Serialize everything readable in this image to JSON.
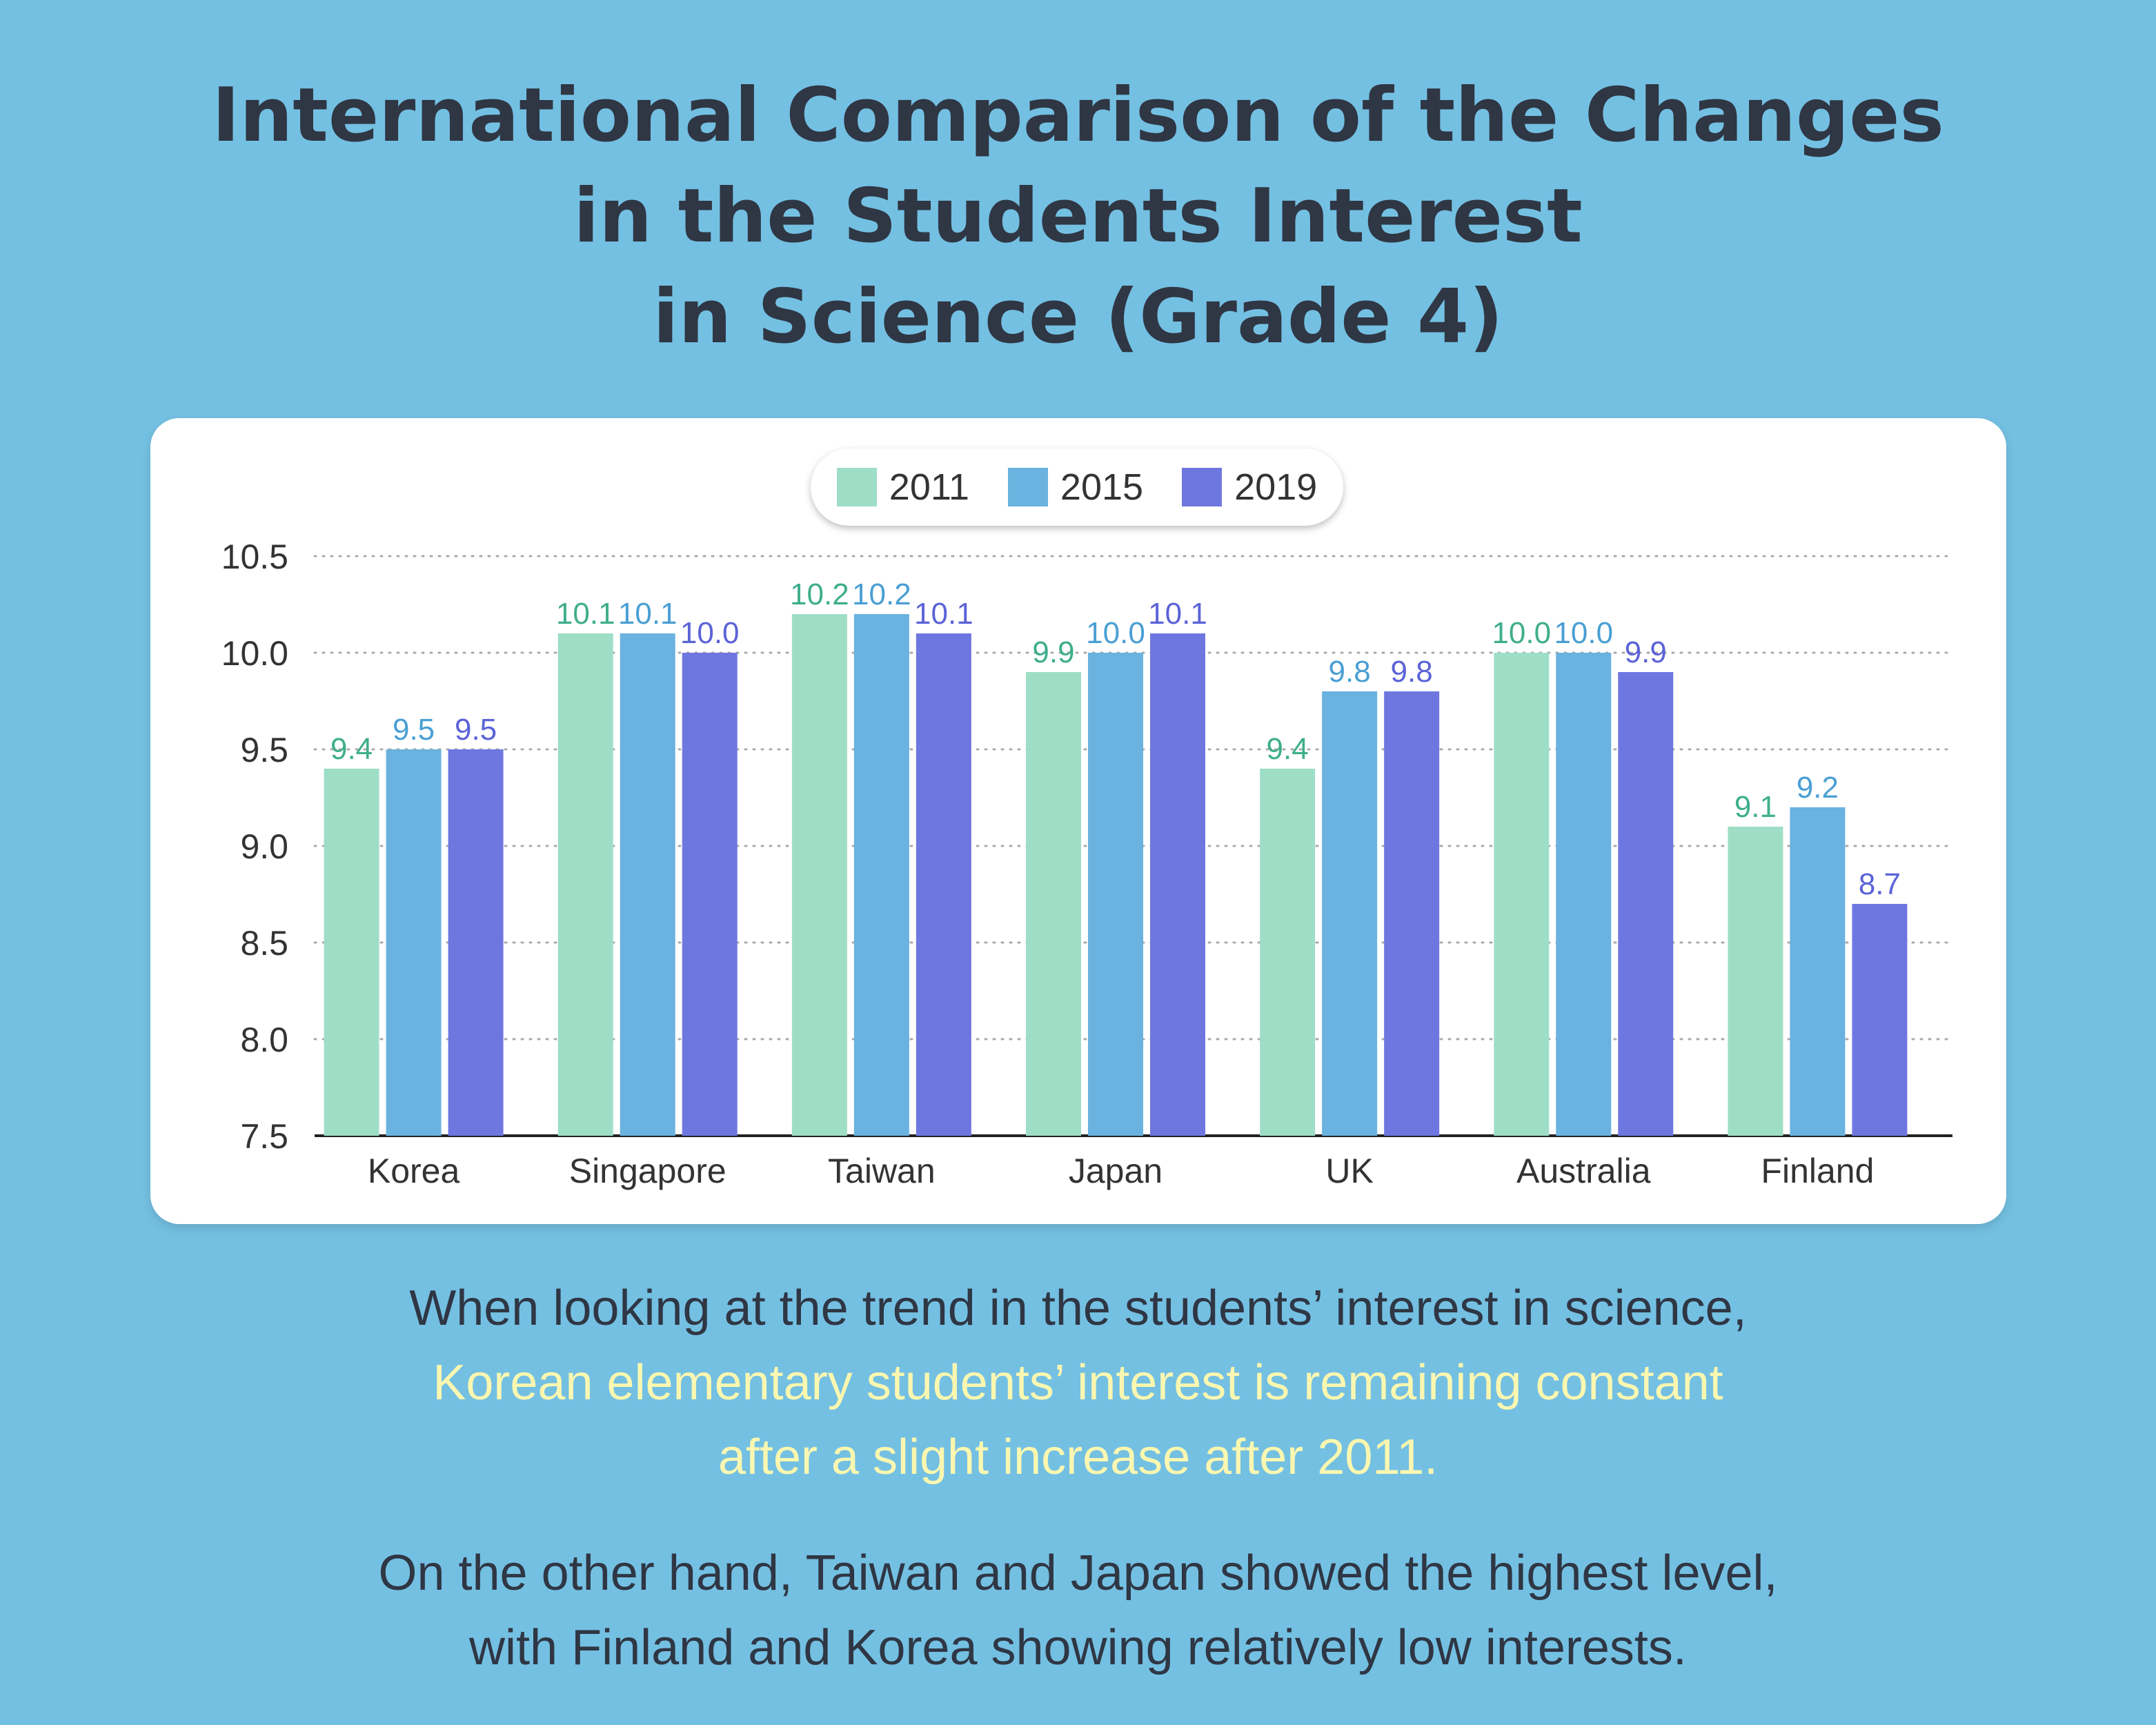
{
  "title": {
    "line1": "International Comparison of the Changes",
    "line2": "in the Students Interest",
    "line3": "in Science (Grade 4)"
  },
  "legend": [
    {
      "label": "2011",
      "color": "#9fdec6"
    },
    {
      "label": "2015",
      "color": "#6ab2df"
    },
    {
      "label": "2019",
      "color": "#6e77e0"
    }
  ],
  "chart_data": {
    "type": "bar",
    "categories": [
      "Korea",
      "Singapore",
      "Taiwan",
      "Japan",
      "UK",
      "Australia",
      "Finland"
    ],
    "series": [
      {
        "name": "2011",
        "color": "#9fdec6",
        "label_color": "#3fae8c",
        "values": [
          9.4,
          10.1,
          10.2,
          9.9,
          9.4,
          10.0,
          9.1
        ]
      },
      {
        "name": "2015",
        "color": "#6ab2df",
        "label_color": "#4a9fd4",
        "values": [
          9.5,
          10.1,
          10.2,
          10.0,
          9.8,
          10.0,
          9.2
        ]
      },
      {
        "name": "2019",
        "color": "#6e77e0",
        "label_color": "#5b63d8",
        "values": [
          9.5,
          10.0,
          10.1,
          10.1,
          9.8,
          9.9,
          8.7
        ]
      }
    ],
    "yticks": [
      "7.5",
      "8.0",
      "8.5",
      "9.0",
      "9.5",
      "10.0",
      "10.5"
    ],
    "ylim": [
      7.5,
      10.5
    ],
    "grid": "dotted horizontal",
    "legend_position": "top-center"
  },
  "caption": {
    "p1_line1": "When looking at the trend in the students’ interest in science,",
    "p1_line2": "Korean elementary students’ interest is remaining constant",
    "p1_line3": "after a slight increase after 2011.",
    "p2_line1": "On the other hand, Taiwan and Japan showed the highest level,",
    "p2_line2": "with Finland and Korea showing relatively low interests."
  }
}
